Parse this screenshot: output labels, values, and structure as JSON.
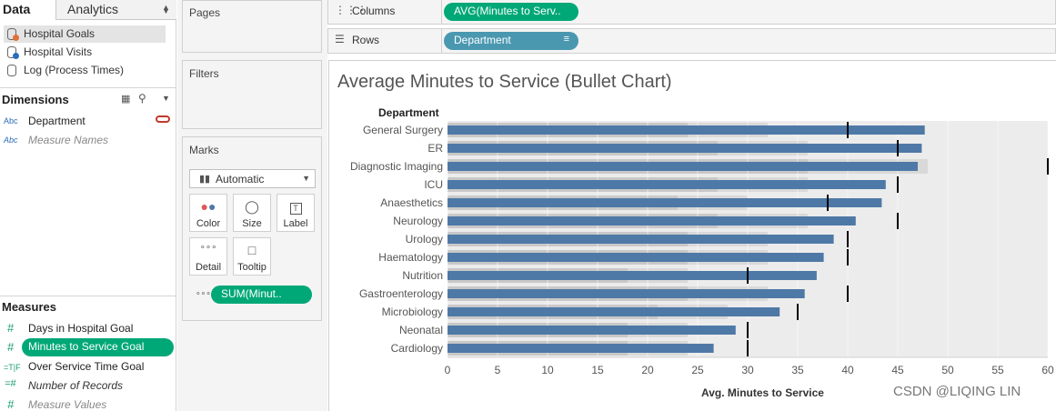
{
  "data_pane": {
    "tabs": {
      "data": "Data",
      "analytics": "Analytics"
    },
    "datasources": [
      {
        "label": "Hospital Goals",
        "selected": true
      },
      {
        "label": "Hospital Visits",
        "selected": false
      },
      {
        "label": "Log (Process Times)",
        "selected": false
      }
    ],
    "dimensions_title": "Dimensions",
    "dimensions": [
      {
        "type": "Abc",
        "label": "Department",
        "italic": false
      },
      {
        "type": "Abc",
        "label": "Measure Names",
        "italic": true
      }
    ],
    "measures_title": "Measures",
    "measures": [
      {
        "type": "#",
        "label": "Days in Hospital Goal",
        "italic": false
      },
      {
        "type": "#",
        "label": "Minutes to Service Goal",
        "italic": false,
        "highlighted": true
      },
      {
        "type": "=T|F",
        "label": "Over Service Time Goal",
        "italic": false
      },
      {
        "type": "=#",
        "label": "Number of Records",
        "italic": true
      },
      {
        "type": "#",
        "label": "Measure Values",
        "italic": true
      }
    ]
  },
  "cards": {
    "pages": "Pages",
    "filters": "Filters",
    "marks": "Marks",
    "mark_type": "Automatic",
    "mark_buttons": [
      {
        "label": "Color",
        "icon": "color-icon"
      },
      {
        "label": "Size",
        "icon": "size-icon"
      },
      {
        "label": "Label",
        "icon": "label-icon"
      },
      {
        "label": "Detail",
        "icon": "detail-icon"
      },
      {
        "label": "Tooltip",
        "icon": "tooltip-icon"
      }
    ],
    "sum_pill": "SUM(Minut.."
  },
  "shelves": {
    "columns_label": "Columns",
    "columns_pill": "AVG(Minutes to Serv..",
    "rows_label": "Rows",
    "rows_pill": "Department"
  },
  "view": {
    "title": "Average Minutes to Service (Bullet Chart)",
    "watermark": "CSDN @LIQING LIN"
  },
  "colors": {
    "green_pill": "#00a877",
    "blue_pill": "#4a98b0",
    "bar": "#4e79a7",
    "band_dark": "#c8c8c8",
    "band_mid": "#d9d9d9",
    "band_light": "#ececec",
    "reference": "#000000"
  },
  "chart_data": {
    "type": "bar",
    "title": "Average Minutes to Service (Bullet Chart)",
    "row_header": "Department",
    "xlabel": "Avg. Minutes to Service",
    "xlim": [
      0,
      60
    ],
    "x_ticks": [
      0,
      5,
      10,
      15,
      20,
      25,
      30,
      35,
      40,
      45,
      50,
      55,
      60
    ],
    "categories": [
      "General Surgery",
      "ER",
      "Diagnostic Imaging",
      "ICU",
      "Anaesthetics",
      "Neurology",
      "Urology",
      "Haematology",
      "Nutrition",
      "Gastroenterology",
      "Microbiology",
      "Neonatal",
      "Cardiology"
    ],
    "series": [
      {
        "name": "",
        "values": [
          47.7,
          47.4,
          47.0,
          43.8,
          43.4,
          40.8,
          38.6,
          37.6,
          36.9,
          35.7,
          33.2,
          28.8,
          26.6
        ]
      }
    ],
    "goals": [
      40,
      45,
      60,
      45,
      38,
      45,
      40,
      40,
      30,
      40,
      35,
      30,
      30
    ],
    "bands": [
      [
        24,
        32,
        60
      ],
      [
        27,
        36,
        60
      ],
      [
        36,
        48,
        60
      ],
      [
        27,
        36,
        60
      ],
      [
        23,
        30,
        60
      ],
      [
        27,
        36,
        60
      ],
      [
        24,
        32,
        60
      ],
      [
        24,
        32,
        60
      ],
      [
        18,
        24,
        60
      ],
      [
        24,
        32,
        60
      ],
      [
        21,
        28,
        60
      ],
      [
        18,
        24,
        60
      ],
      [
        18,
        24,
        60
      ]
    ],
    "grid": true
  }
}
